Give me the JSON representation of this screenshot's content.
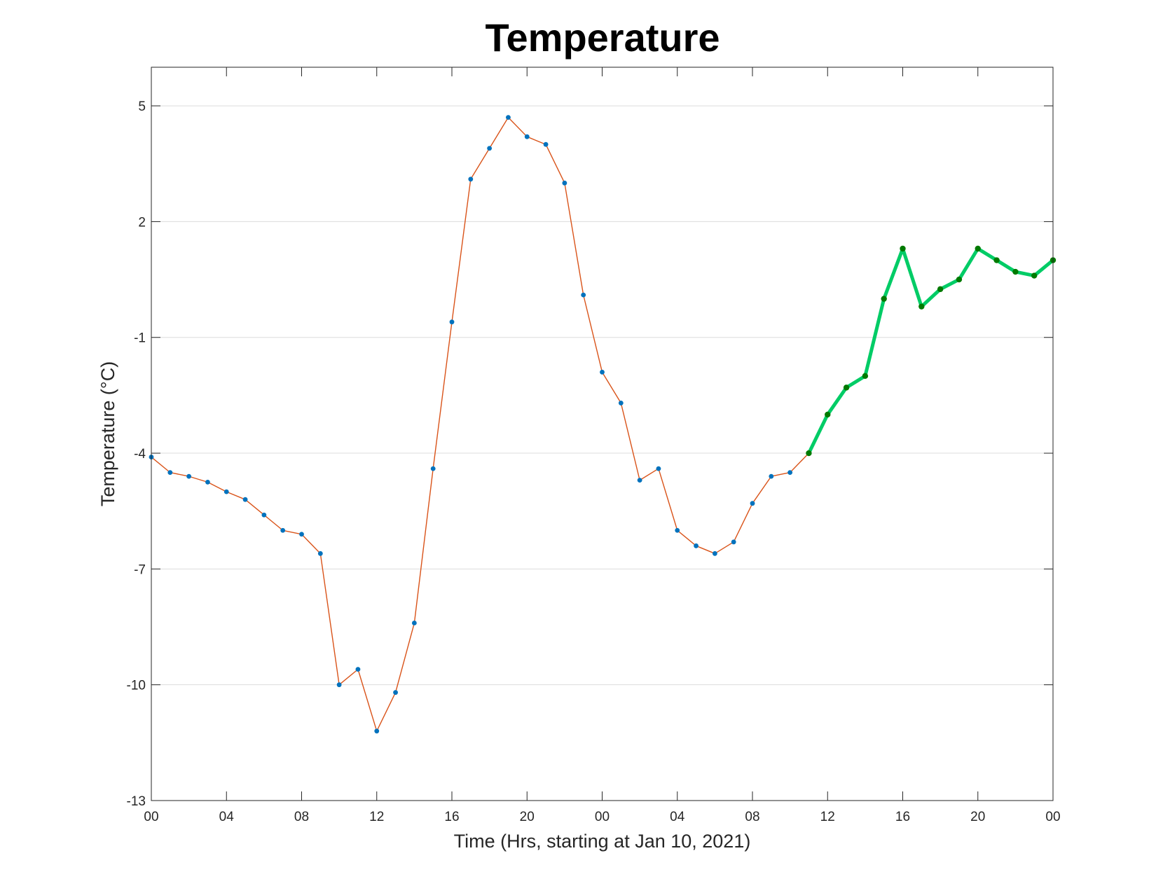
{
  "chart_data": {
    "type": "line",
    "title": "Temperature",
    "xlabel": "Time (Hrs, starting at Jan 10, 2021)",
    "ylabel": "Temperature (°C)",
    "x_start": "2021-01-10 00:00",
    "x_end": "2021-01-12 00:00",
    "xlim": [
      "2021-01-10 00:00",
      "2021-01-12 00:00"
    ],
    "ylim": [
      -13,
      6
    ],
    "grid": "horizontal",
    "x_ticks": [
      "00",
      "04",
      "08",
      "12",
      "16",
      "20",
      "00",
      "04",
      "08",
      "12",
      "16",
      "20",
      "00"
    ],
    "y_ticks": [
      5,
      2,
      -1,
      -4,
      -7,
      -10,
      -13
    ],
    "series": [
      {
        "color": "#d95319",
        "marker_color": "#0072bd",
        "style": "thin line with dot markers",
        "x": [
          "2021-01-10 00:00",
          "2021-01-10 01:00",
          "2021-01-10 02:00",
          "2021-01-10 03:00",
          "2021-01-10 04:00",
          "2021-01-10 05:00",
          "2021-01-10 06:00",
          "2021-01-10 07:00",
          "2021-01-10 08:00",
          "2021-01-10 09:00",
          "2021-01-10 10:00",
          "2021-01-10 11:00",
          "2021-01-10 12:00",
          "2021-01-10 13:00",
          "2021-01-10 14:00",
          "2021-01-10 15:00",
          "2021-01-10 16:00",
          "2021-01-10 17:00",
          "2021-01-10 18:00",
          "2021-01-10 19:00",
          "2021-01-10 20:00",
          "2021-01-10 21:00",
          "2021-01-10 22:00",
          "2021-01-10 23:00",
          "2021-01-11 00:00",
          "2021-01-11 01:00",
          "2021-01-11 02:00",
          "2021-01-11 03:00",
          "2021-01-11 04:00",
          "2021-01-11 05:00",
          "2021-01-11 06:00",
          "2021-01-11 07:00",
          "2021-01-11 08:00",
          "2021-01-11 09:00",
          "2021-01-11 10:00",
          "2021-01-11 11:00"
        ],
        "values": [
          -4.1,
          -4.5,
          -4.6,
          -4.75,
          -5.0,
          -5.2,
          -5.6,
          -6.0,
          -6.1,
          -6.6,
          -10.0,
          -9.6,
          -11.2,
          -10.2,
          -8.4,
          -4.4,
          -0.6,
          3.1,
          3.9,
          4.7,
          4.2,
          4.0,
          3.0,
          0.1,
          -1.9,
          -2.7,
          -4.7,
          -4.4,
          -6.0,
          -6.4,
          -6.6,
          -6.3,
          -5.3,
          -4.6,
          -4.5,
          -4.0
        ]
      },
      {
        "color": "#00cc66",
        "marker_color": "#007a00",
        "style": "thick line with dot markers",
        "x": [
          "2021-01-11 11:00",
          "2021-01-11 12:00",
          "2021-01-11 13:00",
          "2021-01-11 14:00",
          "2021-01-11 15:00",
          "2021-01-11 16:00",
          "2021-01-11 17:00",
          "2021-01-11 18:00",
          "2021-01-11 19:00",
          "2021-01-11 20:00",
          "2021-01-11 21:00",
          "2021-01-11 22:00",
          "2021-01-11 23:00",
          "2021-01-12 00:00"
        ],
        "values": [
          -4.0,
          -3.0,
          -2.3,
          -2.0,
          0.0,
          1.3,
          -0.2,
          0.25,
          0.5,
          1.3,
          1.0,
          0.7,
          0.6,
          1.0
        ]
      }
    ]
  }
}
